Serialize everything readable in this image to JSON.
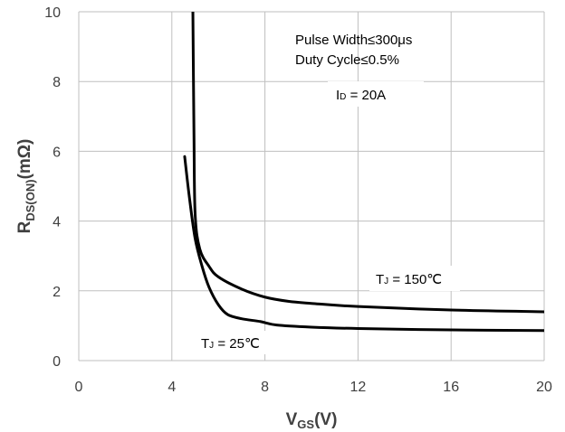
{
  "chart_data": {
    "type": "line",
    "xlabel": {
      "main": "V",
      "sub": "GS",
      "tail": "(V)"
    },
    "ylabel": {
      "main": "R",
      "sub": "DS(ON)",
      "tail": "(mΩ)"
    },
    "xlim": [
      0,
      20
    ],
    "ylim": [
      0,
      10
    ],
    "xticks": [
      0,
      4,
      8,
      12,
      16,
      20
    ],
    "yticks": [
      0,
      2,
      4,
      6,
      8,
      10
    ],
    "xtick_labels": [
      "0",
      "4",
      "8",
      "12",
      "16",
      "20"
    ],
    "ytick_labels": [
      "0",
      "2",
      "4",
      "6",
      "8",
      "10"
    ],
    "grid": true,
    "annotations": {
      "pulse_width": "Pulse Width≤300μs",
      "duty_cycle": "Duty Cycle≤0.5%",
      "id_main": "I",
      "id_sub": "D",
      "id_tail": " = 20A",
      "tj150_main": "T",
      "tj150_sub": "J",
      "tj150_tail": " = 150℃",
      "tj25_main": "T",
      "tj25_sub": "J",
      "tj25_tail": " = 25℃"
    },
    "series": [
      {
        "key": "tj25",
        "color": "#000000",
        "points": [
          [
            4.55,
            5.85
          ],
          [
            4.75,
            4.7
          ],
          [
            5.0,
            3.5
          ],
          [
            5.3,
            2.7
          ],
          [
            5.6,
            2.1
          ],
          [
            6.0,
            1.6
          ],
          [
            6.4,
            1.32
          ],
          [
            7.0,
            1.2
          ],
          [
            7.8,
            1.12
          ],
          [
            8.5,
            1.02
          ],
          [
            10,
            0.96
          ],
          [
            12,
            0.92
          ],
          [
            16,
            0.88
          ],
          [
            20,
            0.86
          ]
        ]
      },
      {
        "key": "tj150",
        "color": "#000000",
        "points": [
          [
            4.9,
            10.3
          ],
          [
            4.95,
            6.5
          ],
          [
            5.0,
            4.2
          ],
          [
            5.2,
            3.2
          ],
          [
            5.6,
            2.7
          ],
          [
            6.0,
            2.4
          ],
          [
            7.0,
            2.05
          ],
          [
            8.0,
            1.82
          ],
          [
            9.0,
            1.7
          ],
          [
            10,
            1.64
          ],
          [
            12,
            1.55
          ],
          [
            16,
            1.45
          ],
          [
            20,
            1.4
          ]
        ]
      }
    ]
  }
}
